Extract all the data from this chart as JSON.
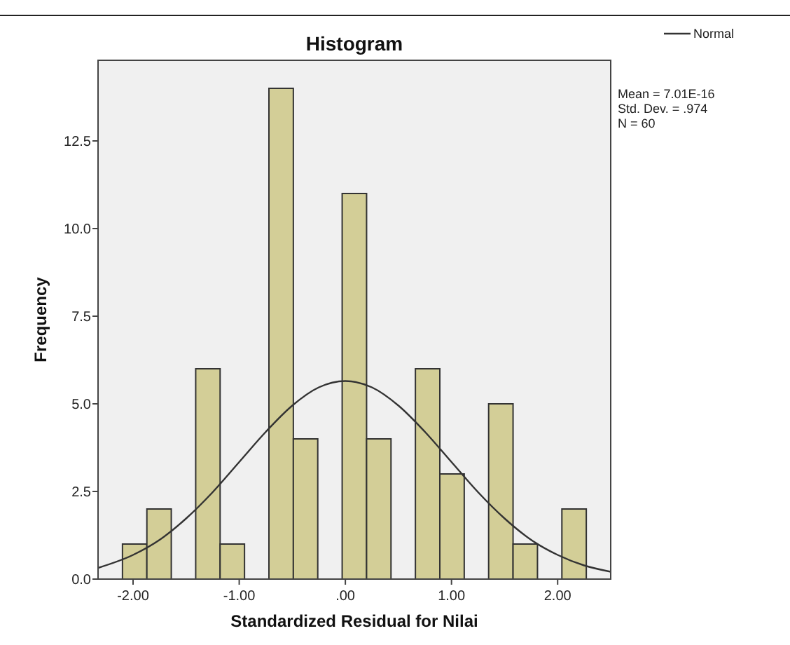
{
  "chart_data": {
    "type": "histogram",
    "title": "Histogram",
    "xlabel": "Standardized Residual for Nilai",
    "ylabel": "Frequency",
    "bins": [
      -2.1,
      -1.87,
      -1.64,
      -1.41,
      -1.18,
      -0.95,
      -0.72,
      -0.49,
      -0.26,
      -0.03,
      0.2,
      0.43,
      0.66,
      0.89,
      1.12,
      1.35,
      1.58,
      1.81,
      2.04,
      2.27
    ],
    "values": [
      1,
      2,
      0,
      6,
      1,
      0,
      14,
      4,
      0,
      11,
      4,
      0,
      6,
      3,
      0,
      5,
      1,
      0,
      2
    ],
    "color": "#d3ce97",
    "series": [
      {
        "type": "line",
        "name": "Normal",
        "color": "#333333",
        "x": [
          -2.33,
          -2.0,
          -1.75,
          -1.5,
          -1.25,
          -1.0,
          -0.75,
          -0.5,
          -0.25,
          0,
          0.25,
          0.5,
          0.75,
          1.0,
          1.25,
          1.5,
          1.75,
          2.0,
          2.25,
          2.5
        ],
        "values": [
          0.32,
          0.69,
          1.12,
          1.73,
          2.48,
          3.34,
          4.2,
          4.95,
          5.47,
          5.65,
          5.47,
          4.95,
          4.2,
          3.34,
          2.48,
          1.73,
          1.12,
          0.69,
          0.39,
          0.21
        ]
      }
    ],
    "xlim": [
      -2.33,
      2.5
    ],
    "ylim": [
      0,
      14.8
    ],
    "xticks": [
      {
        "value": -2,
        "label": "-2.00"
      },
      {
        "value": -1,
        "label": "-1.00"
      },
      {
        "value": 0,
        "label": ".00"
      },
      {
        "value": 1,
        "label": "1.00"
      },
      {
        "value": 2,
        "label": "2.00"
      }
    ],
    "yticks": [
      {
        "value": 0,
        "label": "0.0"
      },
      {
        "value": 2.5,
        "label": "2.5"
      },
      {
        "value": 5,
        "label": "5.0"
      },
      {
        "value": 7.5,
        "label": "7.5"
      },
      {
        "value": 10,
        "label": "10.0"
      },
      {
        "value": 12.5,
        "label": "12.5"
      }
    ],
    "grid": false,
    "legend": "top right",
    "annotations": [
      "Mean = 7.01E-16",
      "Std. Dev. = .974",
      "N = 60"
    ]
  }
}
